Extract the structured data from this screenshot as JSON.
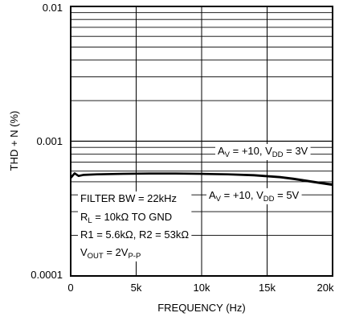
{
  "chart_data": {
    "type": "line",
    "xlabel": "FREQUENCY (Hz)",
    "ylabel": "THD + N (%)",
    "y_scale": "log",
    "xlim": [
      0,
      20000
    ],
    "ylim": [
      0.0001,
      0.01
    ],
    "grid": true,
    "x_ticks": [
      {
        "value": 0,
        "label": "0"
      },
      {
        "value": 5000,
        "label": "5k"
      },
      {
        "value": 10000,
        "label": "10k"
      },
      {
        "value": 15000,
        "label": "15k"
      },
      {
        "value": 20000,
        "label": "20k"
      }
    ],
    "y_ticks": [
      {
        "value": 0.01,
        "label": "0.01"
      },
      {
        "value": 0.001,
        "label": "0.001"
      },
      {
        "value": 0.0001,
        "label": "0.0001"
      }
    ],
    "series": [
      {
        "name": "AV = +10, VDD = 3V",
        "x": [
          0,
          300,
          600,
          1000,
          2000,
          4000,
          6000,
          8000,
          10000,
          12000,
          14000,
          16000,
          17000,
          18000,
          19000,
          20000
        ],
        "y": [
          0.00054,
          0.00058,
          0.000555,
          0.000565,
          0.00057,
          0.000575,
          0.000578,
          0.000578,
          0.000575,
          0.00057,
          0.000562,
          0.000545,
          0.00053,
          0.000512,
          0.000495,
          0.00048
        ]
      },
      {
        "name": "AV = +10, VDD = 5V",
        "x": [
          0,
          300,
          600,
          1000,
          2000,
          4000,
          6000,
          8000,
          10000,
          12000,
          14000,
          16000,
          17000,
          18000,
          19000,
          20000
        ],
        "y": [
          0.00053,
          0.000575,
          0.00055,
          0.00056,
          0.000565,
          0.00057,
          0.000573,
          0.000573,
          0.00057,
          0.000565,
          0.000556,
          0.000538,
          0.000522,
          0.000505,
          0.000488,
          0.000472
        ]
      }
    ],
    "annotations": {
      "curve_3v": {
        "label": "AV = +10, VDD = 3V",
        "pre": "A",
        "s1": "V",
        "mid": " = +10, V",
        "s2": "DD",
        "post": " = 3V"
      },
      "curve_5v": {
        "label": "AV = +10, VDD = 5V",
        "pre": "A",
        "s1": "V",
        "mid": " = +10, V",
        "s2": "DD",
        "post": " = 5V"
      },
      "conditions": {
        "line1": "FILTER BW = 22kHz",
        "line2": {
          "pre": "R",
          "sub": "L",
          "post": " = 10kΩ TO GND"
        },
        "line3": "R1 = 5.6kΩ, R2 = 53kΩ",
        "line4": {
          "pre": "V",
          "sub1": "OUT",
          "mid": " = 2V",
          "sub2": "P-P"
        }
      }
    }
  }
}
